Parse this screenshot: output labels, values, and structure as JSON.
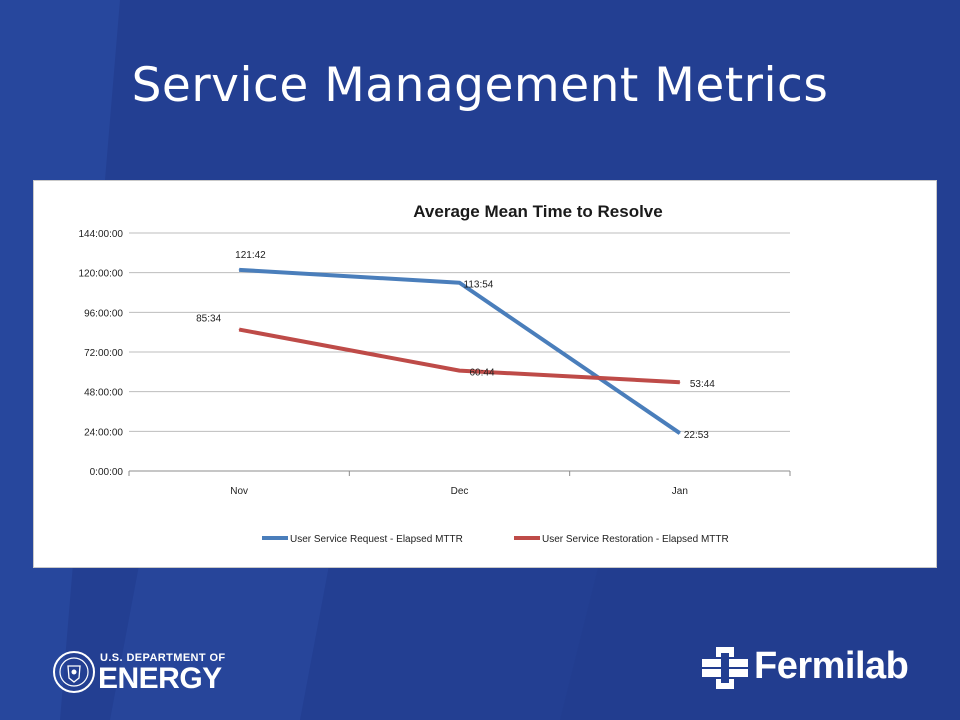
{
  "slide": {
    "title": "Service Management Metrics",
    "background_color": "#233f92"
  },
  "chart_data": {
    "type": "line",
    "title": "Average Mean Time to Resolve",
    "categories": [
      "Nov",
      "Dec",
      "Jan"
    ],
    "y_unit": "hours",
    "ylim": [
      0,
      144
    ],
    "y_ticks": [
      0,
      24,
      48,
      72,
      96,
      120,
      144
    ],
    "y_tick_labels": [
      "0:00:00",
      "24:00:00",
      "48:00:00",
      "72:00:00",
      "96:00:00",
      "120:00:00",
      "144:00:00"
    ],
    "grid": true,
    "legend_position": "bottom",
    "series": [
      {
        "name": "User Service Request - Elapsed MTTR",
        "color": "#4a7ebb",
        "values": [
          121.7,
          113.9,
          22.883
        ],
        "labels": [
          "121:42",
          "113:54",
          "22:53"
        ]
      },
      {
        "name": "User Service Restoration - Elapsed MTTR",
        "color": "#be4b48",
        "values": [
          85.567,
          60.733,
          53.733
        ],
        "labels": [
          "85:34",
          "60:44",
          "53:44"
        ]
      }
    ]
  },
  "logos": {
    "doe_line1": "U.S. DEPARTMENT OF",
    "doe_line2": "ENERGY",
    "fermilab": "Fermilab"
  }
}
